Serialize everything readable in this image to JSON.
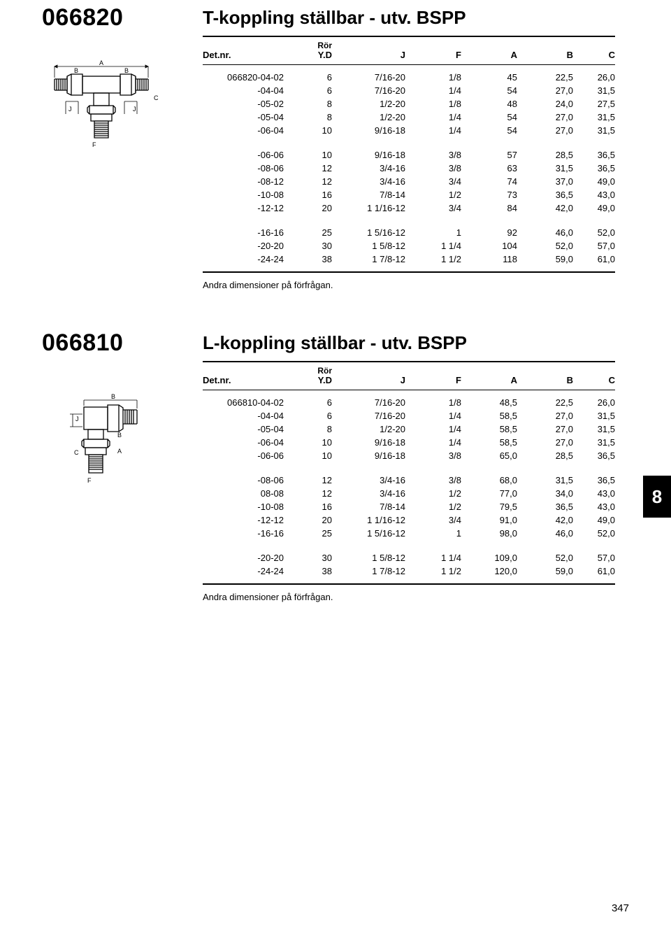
{
  "page_number": "347",
  "side_tab": "8",
  "note_text": "Andra dimensioner på förfrågan.",
  "headers": {
    "det": "Det.nr.",
    "ror": "Rör",
    "yd": "Y.D",
    "j": "J",
    "f": "F",
    "a": "A",
    "b": "B",
    "c": "C"
  },
  "products": [
    {
      "number": "066820",
      "title": "T-koppling ställbar - utv. BSPP",
      "diagram": "tee",
      "groups": [
        [
          [
            "066820-04-02",
            "6",
            "7/16-20",
            "1/8",
            "45",
            "22,5",
            "26,0"
          ],
          [
            "-04-04",
            "6",
            "7/16-20",
            "1/4",
            "54",
            "27,0",
            "31,5"
          ],
          [
            "-05-02",
            "8",
            "1/2-20",
            "1/8",
            "48",
            "24,0",
            "27,5"
          ],
          [
            "-05-04",
            "8",
            "1/2-20",
            "1/4",
            "54",
            "27,0",
            "31,5"
          ],
          [
            "-06-04",
            "10",
            "9/16-18",
            "1/4",
            "54",
            "27,0",
            "31,5"
          ]
        ],
        [
          [
            "-06-06",
            "10",
            "9/16-18",
            "3/8",
            "57",
            "28,5",
            "36,5"
          ],
          [
            "-08-06",
            "12",
            "3/4-16",
            "3/8",
            "63",
            "31,5",
            "36,5"
          ],
          [
            "-08-12",
            "12",
            "3/4-16",
            "3/4",
            "74",
            "37,0",
            "49,0"
          ],
          [
            "-10-08",
            "16",
            "7/8-14",
            "1/2",
            "73",
            "36,5",
            "43,0"
          ],
          [
            "-12-12",
            "20",
            "1 1/16-12",
            "3/4",
            "84",
            "42,0",
            "49,0"
          ]
        ],
        [
          [
            "-16-16",
            "25",
            "1 5/16-12",
            "1",
            "92",
            "46,0",
            "52,0"
          ],
          [
            "-20-20",
            "30",
            "1 5/8-12",
            "1 1/4",
            "104",
            "52,0",
            "57,0"
          ],
          [
            "-24-24",
            "38",
            "1 7/8-12",
            "1 1/2",
            "118",
            "59,0",
            "61,0"
          ]
        ]
      ]
    },
    {
      "number": "066810",
      "title": "L-koppling ställbar - utv. BSPP",
      "diagram": "ell",
      "groups": [
        [
          [
            "066810-04-02",
            "6",
            "7/16-20",
            "1/8",
            "48,5",
            "22,5",
            "26,0"
          ],
          [
            "-04-04",
            "6",
            "7/16-20",
            "1/4",
            "58,5",
            "27,0",
            "31,5"
          ],
          [
            "-05-04",
            "8",
            "1/2-20",
            "1/4",
            "58,5",
            "27,0",
            "31,5"
          ],
          [
            "-06-04",
            "10",
            "9/16-18",
            "1/4",
            "58,5",
            "27,0",
            "31,5"
          ],
          [
            "-06-06",
            "10",
            "9/16-18",
            "3/8",
            "65,0",
            "28,5",
            "36,5"
          ]
        ],
        [
          [
            "-08-06",
            "12",
            "3/4-16",
            "3/8",
            "68,0",
            "31,5",
            "36,5"
          ],
          [
            "08-08",
            "12",
            "3/4-16",
            "1/2",
            "77,0",
            "34,0",
            "43,0"
          ],
          [
            "-10-08",
            "16",
            "7/8-14",
            "1/2",
            "79,5",
            "36,5",
            "43,0"
          ],
          [
            "-12-12",
            "20",
            "1 1/16-12",
            "3/4",
            "91,0",
            "42,0",
            "49,0"
          ],
          [
            "-16-16",
            "25",
            "1 5/16-12",
            "1",
            "98,0",
            "46,0",
            "52,0"
          ]
        ],
        [
          [
            "-20-20",
            "30",
            "1 5/8-12",
            "1 1/4",
            "109,0",
            "52,0",
            "57,0"
          ],
          [
            "-24-24",
            "38",
            "1 7/8-12",
            "1 1/2",
            "120,0",
            "59,0",
            "61,0"
          ]
        ]
      ]
    }
  ]
}
